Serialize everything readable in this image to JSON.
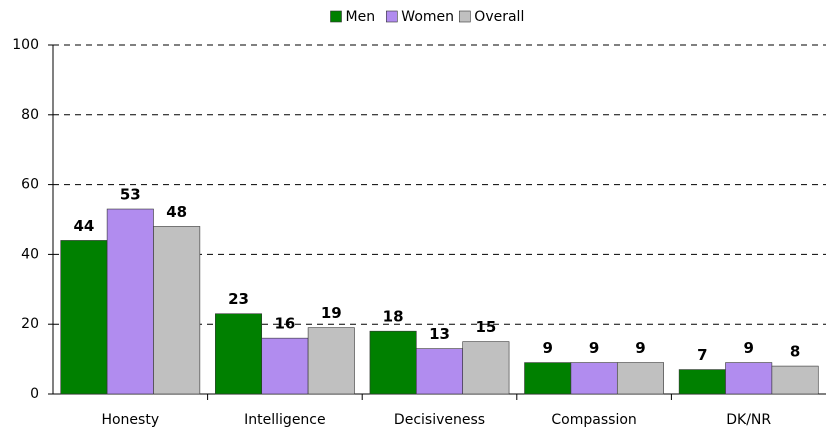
{
  "chart_data": {
    "type": "bar",
    "categories": [
      "Honesty",
      "Intelligence",
      "Decisiveness",
      "Compassion",
      "DK/NR"
    ],
    "series": [
      {
        "name": "Men",
        "color": "#008000",
        "values": [
          44,
          23,
          18,
          9,
          7
        ]
      },
      {
        "name": "Women",
        "color": "#b18cef",
        "values": [
          53,
          16,
          13,
          9,
          9
        ]
      },
      {
        "name": "Overall",
        "color": "#c0c0c0",
        "values": [
          48,
          19,
          15,
          9,
          8
        ]
      }
    ],
    "ylim": [
      0,
      100
    ],
    "yticks": [
      0,
      20,
      40,
      60,
      80,
      100
    ],
    "grid": true,
    "legend": "top"
  }
}
